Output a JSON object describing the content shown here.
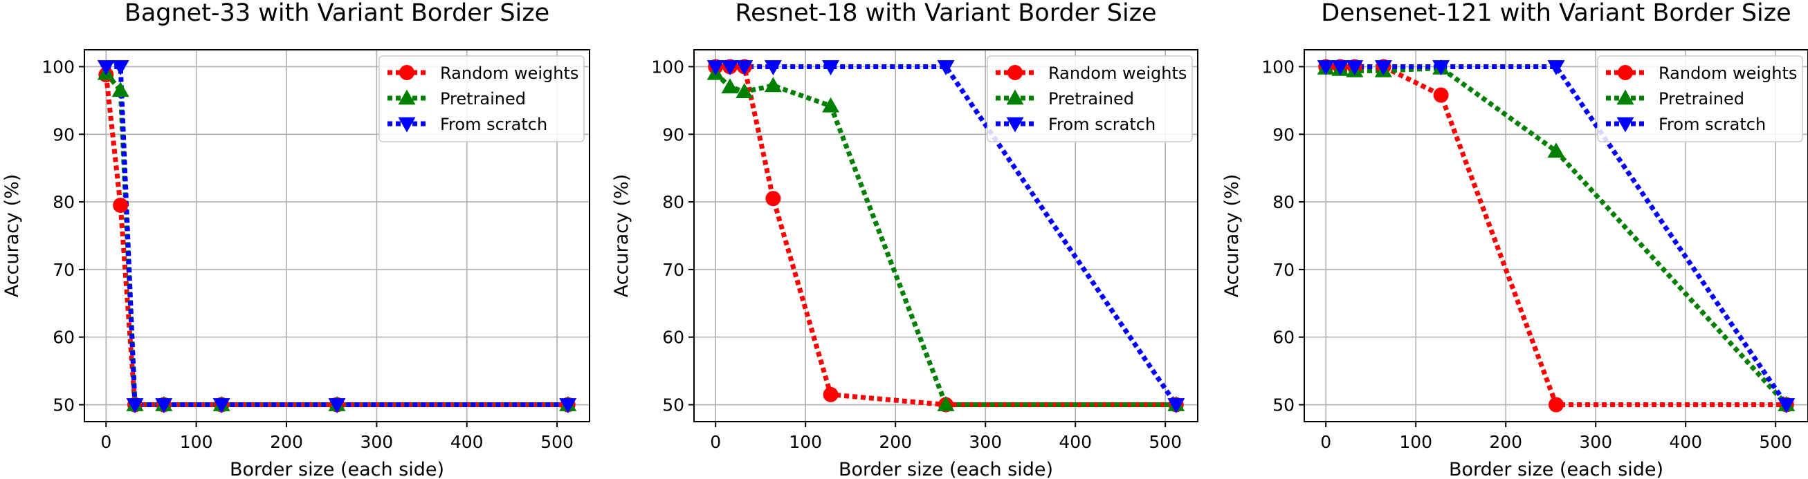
{
  "colors": {
    "random": "#ff0000",
    "pretrained": "#008000",
    "scratch": "#0000ff",
    "grid": "#b0b0b0"
  },
  "chart_data": [
    {
      "type": "line",
      "title": "Bagnet-33 with Variant Border Size",
      "xlabel": "Border size (each side)",
      "ylabel": "Accuracy (%)",
      "xlim": [
        -24,
        536
      ],
      "ylim": [
        47.5,
        102.5
      ],
      "xticks": [
        0,
        100,
        200,
        300,
        400,
        500
      ],
      "yticks": [
        50,
        60,
        70,
        80,
        90,
        100
      ],
      "grid": true,
      "legend": "top-right",
      "x": [
        0,
        16,
        32,
        64,
        128,
        256,
        512
      ],
      "series": [
        {
          "name": "Random weights",
          "marker": "circle",
          "color": "random",
          "values": [
            98.8,
            79.5,
            50,
            50,
            50,
            50,
            50
          ]
        },
        {
          "name": "Pretrained",
          "marker": "triangle-up",
          "color": "pretrained",
          "values": [
            99,
            96.5,
            50,
            50,
            50,
            50,
            50
          ]
        },
        {
          "name": "From scratch",
          "marker": "triangle-down",
          "color": "scratch",
          "values": [
            100,
            100,
            50,
            50,
            50,
            50,
            50
          ]
        }
      ]
    },
    {
      "type": "line",
      "title": "Resnet-18 with Variant Border Size",
      "xlabel": "Border size (each side)",
      "ylabel": "Accuracy (%)",
      "xlim": [
        -24,
        536
      ],
      "ylim": [
        47.5,
        102.5
      ],
      "xticks": [
        0,
        100,
        200,
        300,
        400,
        500
      ],
      "yticks": [
        50,
        60,
        70,
        80,
        90,
        100
      ],
      "grid": true,
      "legend": "top-right",
      "x": [
        0,
        16,
        32,
        64,
        128,
        256,
        512
      ],
      "series": [
        {
          "name": "Random weights",
          "marker": "circle",
          "color": "random",
          "values": [
            100,
            100,
            100,
            80.5,
            51.5,
            50,
            50
          ]
        },
        {
          "name": "Pretrained",
          "marker": "triangle-up",
          "color": "pretrained",
          "values": [
            99,
            97,
            96.3,
            97.2,
            94.2,
            50,
            50
          ]
        },
        {
          "name": "From scratch",
          "marker": "triangle-down",
          "color": "scratch",
          "values": [
            100,
            100,
            100,
            100,
            100,
            100,
            50
          ]
        }
      ]
    },
    {
      "type": "line",
      "title": "Densenet-121 with Variant Border Size",
      "xlabel": "Border size (each side)",
      "ylabel": "Accuracy (%)",
      "xlim": [
        -24,
        536
      ],
      "ylim": [
        47.5,
        102.5
      ],
      "xticks": [
        0,
        100,
        200,
        300,
        400,
        500
      ],
      "yticks": [
        50,
        60,
        70,
        80,
        90,
        100
      ],
      "grid": true,
      "legend": "top-right",
      "x": [
        0,
        16,
        32,
        64,
        128,
        256,
        512
      ],
      "series": [
        {
          "name": "Random weights",
          "marker": "circle",
          "color": "random",
          "values": [
            100,
            100,
            100,
            100,
            95.8,
            50,
            50
          ]
        },
        {
          "name": "Pretrained",
          "marker": "triangle-up",
          "color": "pretrained",
          "values": [
            99.8,
            99.6,
            99.4,
            99.4,
            99.8,
            87.5,
            50
          ]
        },
        {
          "name": "From scratch",
          "marker": "triangle-down",
          "color": "scratch",
          "values": [
            100,
            100,
            100,
            100,
            100,
            100,
            50
          ]
        }
      ]
    }
  ]
}
